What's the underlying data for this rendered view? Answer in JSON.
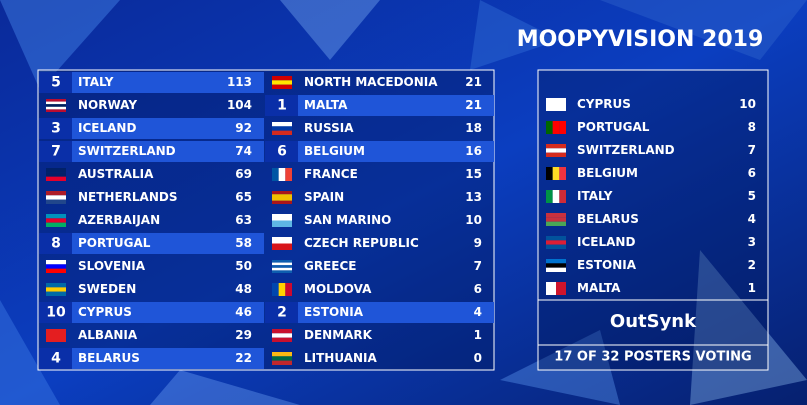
{
  "title": "MOOPYVISION 2019",
  "scoreboard": [
    {
      "country": "ITALY",
      "points": 113,
      "received": 5
    },
    {
      "country": "NORWAY",
      "points": 104
    },
    {
      "country": "ICELAND",
      "points": 92,
      "received": 3
    },
    {
      "country": "SWITZERLAND",
      "points": 74,
      "received": 7
    },
    {
      "country": "AUSTRALIA",
      "points": 69
    },
    {
      "country": "NETHERLANDS",
      "points": 65
    },
    {
      "country": "AZERBAIJAN",
      "points": 63
    },
    {
      "country": "PORTUGAL",
      "points": 58,
      "received": 8
    },
    {
      "country": "SLOVENIA",
      "points": 50
    },
    {
      "country": "SWEDEN",
      "points": 48
    },
    {
      "country": "CYPRUS",
      "points": 46,
      "received": 10
    },
    {
      "country": "ALBANIA",
      "points": 29
    },
    {
      "country": "BELARUS",
      "points": 22,
      "received": 4
    },
    {
      "country": "NORTH MACEDONIA",
      "points": 21
    },
    {
      "country": "MALTA",
      "points": 21,
      "received": 1
    },
    {
      "country": "RUSSIA",
      "points": 18
    },
    {
      "country": "BELGIUM",
      "points": 16,
      "received": 6
    },
    {
      "country": "FRANCE",
      "points": 15
    },
    {
      "country": "SPAIN",
      "points": 13
    },
    {
      "country": "SAN MARINO",
      "points": 10
    },
    {
      "country": "CZECH REPUBLIC",
      "points": 9
    },
    {
      "country": "GREECE",
      "points": 7
    },
    {
      "country": "MOLDOVA",
      "points": 6
    },
    {
      "country": "ESTONIA",
      "points": 4,
      "received": 2
    },
    {
      "country": "DENMARK",
      "points": 1
    },
    {
      "country": "LITHUANIA",
      "points": 0
    }
  ],
  "votes": [
    {
      "country": "CYPRUS",
      "points": 10
    },
    {
      "country": "PORTUGAL",
      "points": 8
    },
    {
      "country": "SWITZERLAND",
      "points": 7
    },
    {
      "country": "BELGIUM",
      "points": 6
    },
    {
      "country": "ITALY",
      "points": 5
    },
    {
      "country": "BELARUS",
      "points": 4
    },
    {
      "country": "ICELAND",
      "points": 3
    },
    {
      "country": "ESTONIA",
      "points": 2
    },
    {
      "country": "MALTA",
      "points": 1
    }
  ],
  "voter": "OutSynk",
  "status": "17 OF 32 POSTERS VOTING"
}
